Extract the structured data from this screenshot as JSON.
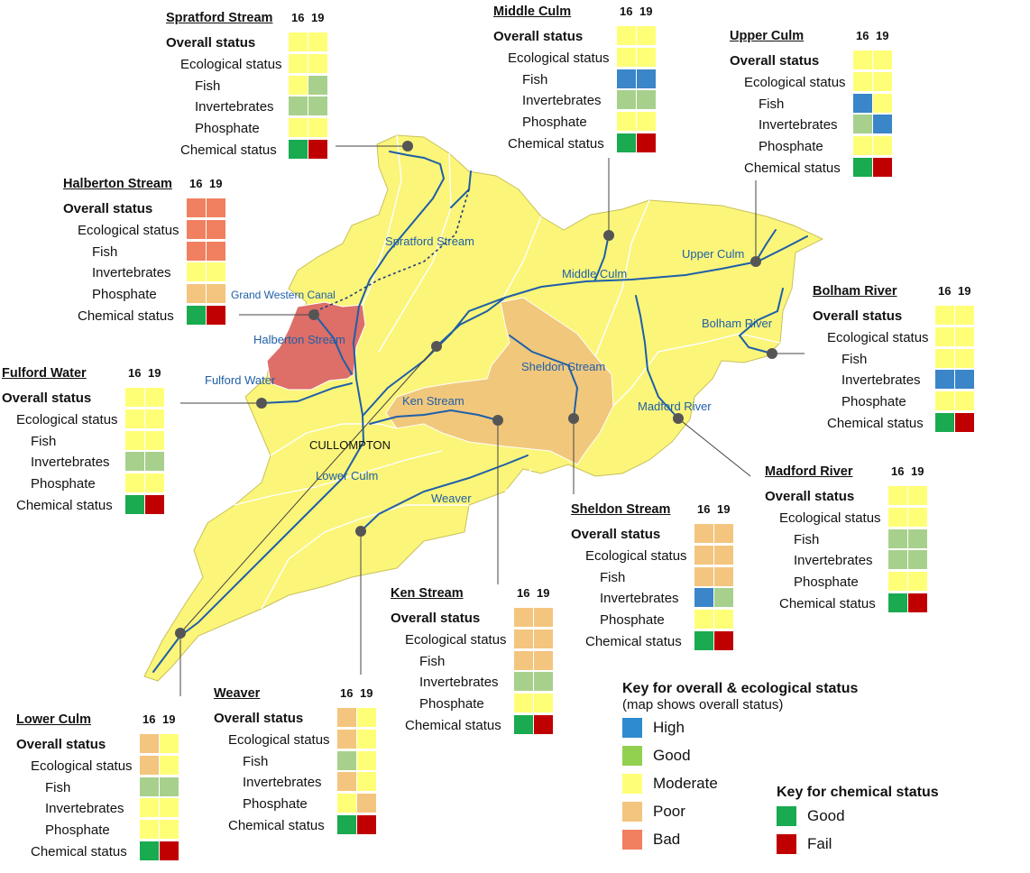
{
  "colors": {
    "High": "#3a86c8",
    "High_small": "#5b9bd5",
    "Good": "#a8d08d",
    "Good_key": "#8bc34a",
    "Moderate": "#ffff77",
    "Poor": "#f4c57e",
    "Bad": "#f08060",
    "ChemGood": "#1aaa50",
    "ChemFail": "#c00000",
    "river": "#1f5fa8",
    "land": "#fbf57a",
    "sheldon_fill": "#f1c77c",
    "halberton_fill": "#dd6e68"
  },
  "year_labels": [
    "16",
    "19"
  ],
  "row_labels": [
    "Overall status",
    "Ecological status",
    "Fish",
    "Invertebrates",
    "Phosphate",
    "Chemical status"
  ],
  "panels": [
    {
      "id": "spratford",
      "title": "Spratford Stream",
      "cells": [
        [
          "Moderate",
          "Moderate"
        ],
        [
          "Moderate",
          "Moderate"
        ],
        [
          "Moderate",
          "Good"
        ],
        [
          "Good",
          "Good"
        ],
        [
          "Moderate",
          "Moderate"
        ],
        [
          "ChemGood",
          "ChemFail"
        ]
      ]
    },
    {
      "id": "middle",
      "title": "Middle Culm",
      "cells": [
        [
          "Moderate",
          "Moderate"
        ],
        [
          "Moderate",
          "Moderate"
        ],
        [
          "High",
          "High"
        ],
        [
          "Good",
          "Good"
        ],
        [
          "Moderate",
          "Moderate"
        ],
        [
          "ChemGood",
          "ChemFail"
        ]
      ]
    },
    {
      "id": "upper",
      "title": "Upper Culm",
      "cells": [
        [
          "Moderate",
          "Moderate"
        ],
        [
          "Moderate",
          "Moderate"
        ],
        [
          "High",
          "Moderate"
        ],
        [
          "Good",
          "High"
        ],
        [
          "Moderate",
          "Moderate"
        ],
        [
          "ChemGood",
          "ChemFail"
        ]
      ]
    },
    {
      "id": "halberton",
      "title": "Halberton Stream",
      "cells": [
        [
          "Bad",
          "Bad"
        ],
        [
          "Bad",
          "Bad"
        ],
        [
          "Bad",
          "Bad"
        ],
        [
          "Moderate",
          "Moderate"
        ],
        [
          "Poor",
          "Poor"
        ],
        [
          "ChemGood",
          "ChemFail"
        ]
      ]
    },
    {
      "id": "bolham",
      "title": "Bolham River",
      "cells": [
        [
          "Moderate",
          "Moderate"
        ],
        [
          "Moderate",
          "Moderate"
        ],
        [
          "Moderate",
          "Moderate"
        ],
        [
          "High",
          "High"
        ],
        [
          "Moderate",
          "Moderate"
        ],
        [
          "ChemGood",
          "ChemFail"
        ]
      ]
    },
    {
      "id": "fulford",
      "title": "Fulford Water",
      "cells": [
        [
          "Moderate",
          "Moderate"
        ],
        [
          "Moderate",
          "Moderate"
        ],
        [
          "Moderate",
          "Moderate"
        ],
        [
          "Good",
          "Good"
        ],
        [
          "Moderate",
          "Moderate"
        ],
        [
          "ChemGood",
          "ChemFail"
        ]
      ]
    },
    {
      "id": "madford",
      "title": "Madford River",
      "cells": [
        [
          "Moderate",
          "Moderate"
        ],
        [
          "Moderate",
          "Moderate"
        ],
        [
          "Good",
          "Good"
        ],
        [
          "Good",
          "Good"
        ],
        [
          "Moderate",
          "Moderate"
        ],
        [
          "ChemGood",
          "ChemFail"
        ]
      ]
    },
    {
      "id": "sheldon",
      "title": "Sheldon Stream",
      "cells": [
        [
          "Poor",
          "Poor"
        ],
        [
          "Poor",
          "Poor"
        ],
        [
          "Poor",
          "Poor"
        ],
        [
          "High",
          "Good"
        ],
        [
          "Moderate",
          "Moderate"
        ],
        [
          "ChemGood",
          "ChemFail"
        ]
      ]
    },
    {
      "id": "ken",
      "title": "Ken Stream",
      "cells": [
        [
          "Poor",
          "Poor"
        ],
        [
          "Poor",
          "Poor"
        ],
        [
          "Poor",
          "Poor"
        ],
        [
          "Good",
          "Good"
        ],
        [
          "Moderate",
          "Moderate"
        ],
        [
          "ChemGood",
          "ChemFail"
        ]
      ]
    },
    {
      "id": "weaver",
      "title": "Weaver",
      "cells": [
        [
          "Poor",
          "Moderate"
        ],
        [
          "Poor",
          "Moderate"
        ],
        [
          "Good",
          "Moderate"
        ],
        [
          "Poor",
          "Moderate"
        ],
        [
          "Moderate",
          "Poor"
        ],
        [
          "ChemGood",
          "ChemFail"
        ]
      ]
    },
    {
      "id": "lower",
      "title": "Lower Culm",
      "cells": [
        [
          "Poor",
          "Moderate"
        ],
        [
          "Poor",
          "Moderate"
        ],
        [
          "Good",
          "Good"
        ],
        [
          "Moderate",
          "Moderate"
        ],
        [
          "Moderate",
          "Moderate"
        ],
        [
          "ChemGood",
          "ChemFail"
        ]
      ]
    }
  ],
  "map_labels": {
    "spratford": "Spratford Stream",
    "middle": "Middle Culm",
    "upper": "Upper Culm",
    "canal": "Grand Western Canal",
    "halberton": "Halberton Stream",
    "bolham": "Bolham River",
    "fulford": "Fulford Water",
    "sheldon": "Sheldon Stream",
    "ken": "Ken Stream",
    "madford": "Madford River",
    "cullompton": "CULLOMPTON",
    "lower": "Lower Culm",
    "weaver": "Weaver"
  },
  "key_overall": {
    "title": "Key for overall & ecological status",
    "subtitle": "(map shows overall status)",
    "items": [
      {
        "label": "High",
        "color": "#2e8bd0"
      },
      {
        "label": "Good",
        "color": "#92d050"
      },
      {
        "label": "Moderate",
        "color": "#ffff77"
      },
      {
        "label": "Poor",
        "color": "#f4c57e"
      },
      {
        "label": "Bad",
        "color": "#f08060"
      }
    ]
  },
  "key_chemical": {
    "title": "Key for chemical status",
    "items": [
      {
        "label": "Good",
        "color": "#1aaa50"
      },
      {
        "label": "Fail",
        "color": "#c00000"
      }
    ]
  }
}
